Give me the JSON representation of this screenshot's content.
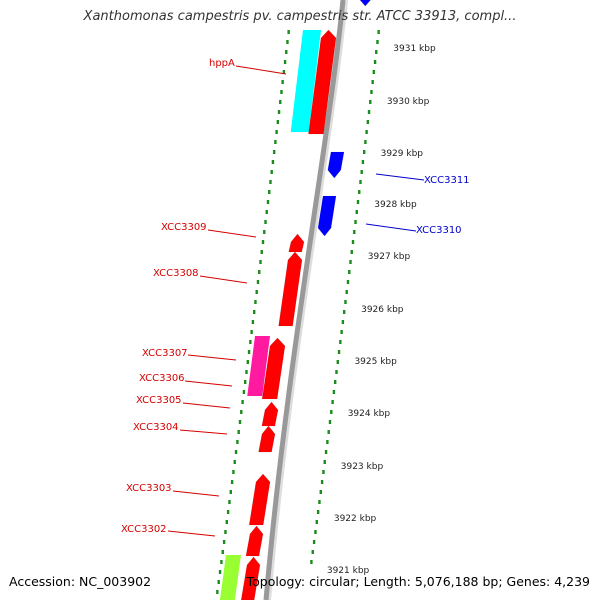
{
  "title": "Xanthomonas campestris pv. campestris str. ATCC 33913, compl...",
  "footer": {
    "accession": "Accession: NC_003902",
    "summary": "Topology: circular; Length: 5,076,188 bp; Genes: 4,239"
  },
  "colors": {
    "forward_gene": "#ff0000",
    "reverse_gene": "#0000ff",
    "label_forward": "#d40000",
    "label_reverse": "#0000cc",
    "backbone": "#999999",
    "dotted_track": "#1a8c1a",
    "cyan_feature": "#00ffff",
    "magenta_feature": "#ff1aa0",
    "lime_feature": "#99ff33"
  },
  "scale": {
    "ticks": [
      "3931 kbp",
      "3930 kbp",
      "3929 kbp",
      "3928 kbp",
      "3927 kbp",
      "3926 kbp",
      "3925 kbp",
      "3924 kbp",
      "3923 kbp",
      "3922 kbp",
      "3921 kbp"
    ]
  },
  "gene_labels": [
    {
      "label": "hppA",
      "strand": "forward"
    },
    {
      "label": "XCC3311",
      "strand": "reverse"
    },
    {
      "label": "XCC3310",
      "strand": "reverse"
    },
    {
      "label": "XCC3309",
      "strand": "forward"
    },
    {
      "label": "XCC3308",
      "strand": "forward"
    },
    {
      "label": "XCC3307",
      "strand": "forward"
    },
    {
      "label": "XCC3306",
      "strand": "forward"
    },
    {
      "label": "XCC3305",
      "strand": "forward"
    },
    {
      "label": "XCC3304",
      "strand": "forward"
    },
    {
      "label": "XCC3303",
      "strand": "forward"
    },
    {
      "label": "XCC3302",
      "strand": "forward"
    }
  ]
}
